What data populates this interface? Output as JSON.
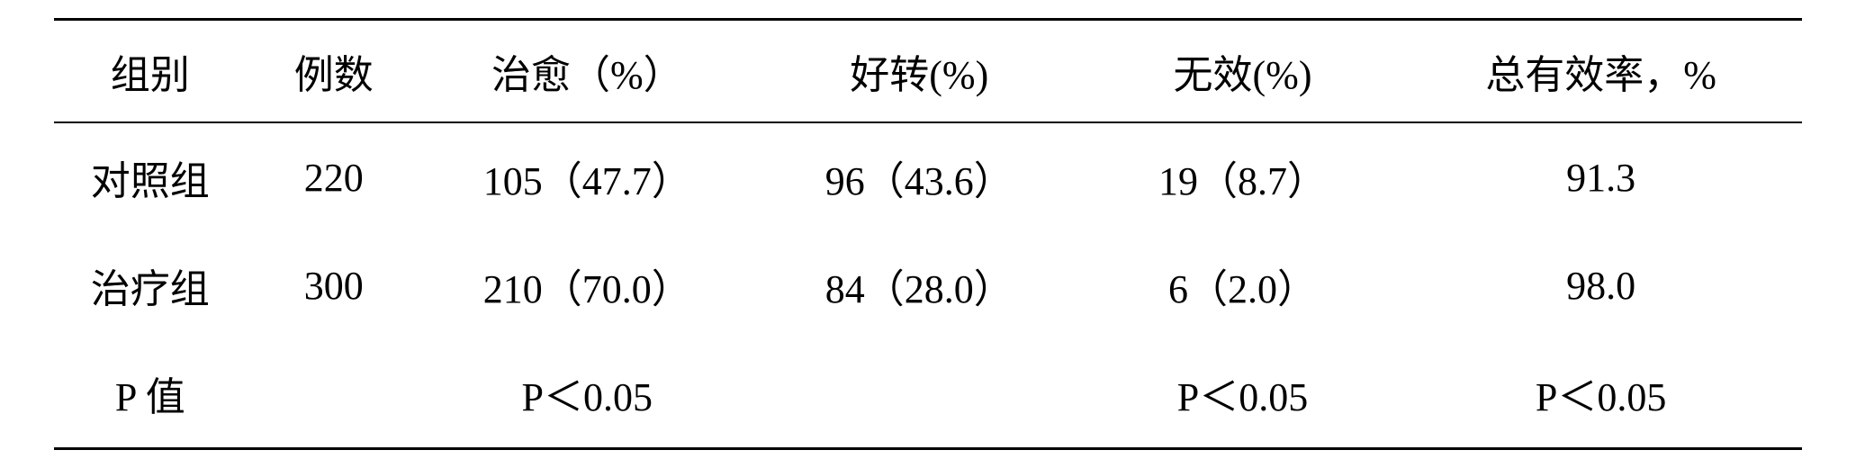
{
  "table": {
    "type": "table",
    "background_color": "#ffffff",
    "text_color": "#000000",
    "font_size": 44,
    "border_color": "#000000",
    "border_top_width": 3,
    "border_header_width": 2,
    "border_bottom_width": 3,
    "columns": [
      {
        "key": "group",
        "label": "组别",
        "width": "11%"
      },
      {
        "key": "count",
        "label": "例数",
        "width": "10%"
      },
      {
        "key": "cured",
        "label": "治愈（%）",
        "width": "19%"
      },
      {
        "key": "improved",
        "label": "好转(%)",
        "width": "19%"
      },
      {
        "key": "invalid",
        "label": "无效(%)",
        "width": "18%"
      },
      {
        "key": "total",
        "label": "总有效率，%",
        "width": "23%"
      }
    ],
    "rows": [
      {
        "group": "对照组",
        "count": "220",
        "cured": "105（47.7）",
        "improved": "96（43.6）",
        "invalid": "19（8.7）",
        "total": "91.3"
      },
      {
        "group": "治疗组",
        "count": "300",
        "cured": "210（70.0）",
        "improved": "84（28.0）",
        "invalid": "6（2.0）",
        "total": "98.0"
      },
      {
        "group": "P 值",
        "count": "",
        "cured": "P＜0.05",
        "improved": "",
        "invalid": "P＜0.05",
        "total": "P＜0.05"
      }
    ]
  }
}
